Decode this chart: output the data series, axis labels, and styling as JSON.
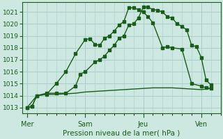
{
  "background_color": "#cce8e0",
  "grid_color": "#aacccc",
  "line_color": "#1a5c1a",
  "title": "Pression niveau de la mer( hPa )",
  "ylim": [
    1012.5,
    1021.8
  ],
  "yticks": [
    1013,
    1014,
    1015,
    1016,
    1017,
    1018,
    1019,
    1020,
    1021
  ],
  "day_labels": [
    "Mer",
    "Sam",
    "Jeu",
    "Ven"
  ],
  "day_positions": [
    0,
    6,
    12,
    18
  ],
  "xlim": [
    -0.5,
    20.0
  ],
  "series1_x": [
    0,
    0.5,
    1.0,
    2.0,
    3.0,
    4.0,
    5.0,
    6.0,
    6.5,
    7.0,
    7.5,
    8.0,
    8.5,
    9.0,
    9.5,
    10.0,
    10.5,
    11.0,
    11.5,
    12.0,
    12.5,
    13.0,
    14.0,
    14.5,
    15.0,
    16.0,
    17.0,
    18.0,
    18.5,
    19.0
  ],
  "series1_y": [
    1013.0,
    1013.1,
    1014.0,
    1014.1,
    1015.0,
    1016.0,
    1017.5,
    1018.7,
    1018.75,
    1018.3,
    1018.2,
    1018.8,
    1019.0,
    1019.4,
    1019.9,
    1020.2,
    1021.35,
    1021.35,
    1021.2,
    1021.0,
    1020.6,
    1020.1,
    1018.0,
    1018.1,
    1018.0,
    1017.9,
    1015.0,
    1014.8,
    1014.65,
    1014.6
  ],
  "series2_x": [
    0,
    0.5,
    1.0,
    2.0,
    3.0,
    4.0,
    5.0,
    5.5,
    6.0,
    7.0,
    7.5,
    8.0,
    8.5,
    9.0,
    9.5,
    10.0,
    10.5,
    11.0,
    11.5,
    12.0,
    12.5,
    13.0,
    13.5,
    14.0,
    14.5,
    15.0,
    15.5,
    16.0,
    16.5,
    17.0,
    17.5,
    18.0,
    18.5,
    19.0
  ],
  "series2_y": [
    1013.0,
    1013.1,
    1014.0,
    1014.2,
    1014.2,
    1014.2,
    1014.8,
    1015.8,
    1016.0,
    1016.8,
    1017.0,
    1017.3,
    1017.8,
    1018.2,
    1018.8,
    1019.0,
    1019.9,
    1020.0,
    1020.5,
    1021.4,
    1021.4,
    1021.2,
    1021.15,
    1021.0,
    1020.6,
    1020.5,
    1020.0,
    1019.8,
    1019.5,
    1018.2,
    1018.1,
    1017.2,
    1015.3,
    1014.9
  ],
  "series3_x": [
    0,
    1,
    2,
    3,
    4,
    5,
    6,
    7,
    8,
    9,
    10,
    11,
    12,
    13,
    14,
    15,
    16,
    17,
    18,
    19
  ],
  "series3_y": [
    1013.0,
    1014.0,
    1014.1,
    1014.1,
    1014.15,
    1014.2,
    1014.3,
    1014.35,
    1014.4,
    1014.45,
    1014.5,
    1014.55,
    1014.6,
    1014.65,
    1014.65,
    1014.65,
    1014.6,
    1014.55,
    1014.5,
    1014.6
  ]
}
